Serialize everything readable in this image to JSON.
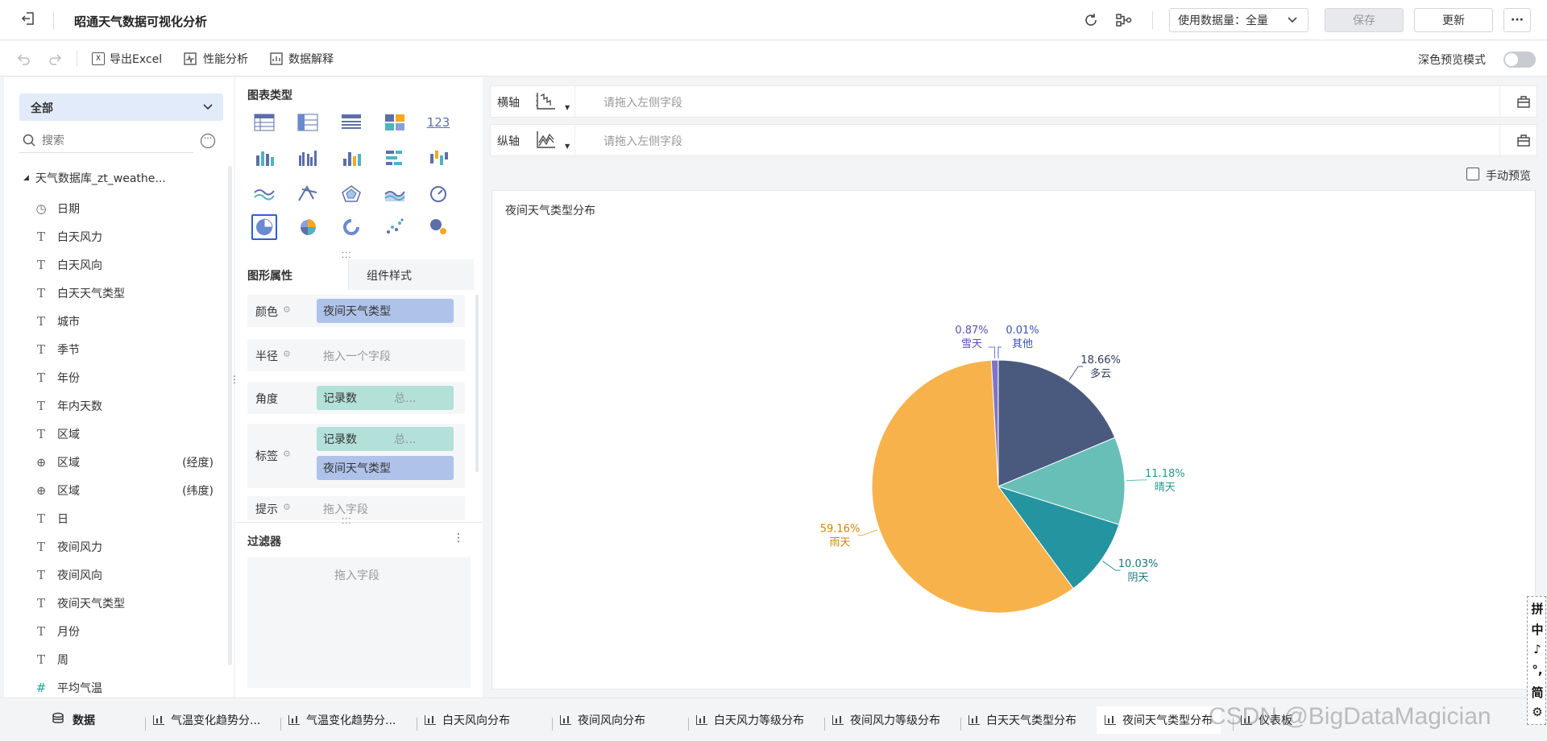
{
  "topbar": {
    "title": "昭通天气数据可视化分析",
    "data_amount_label": "使用数据量：全量",
    "save_label": "保存",
    "update_label": "更新",
    "more_label": "···"
  },
  "toolbar": {
    "export_label": "导出Excel",
    "perf_label": "性能分析",
    "explain_label": "数据解释",
    "dark_preview_label": "深色预览模式"
  },
  "left": {
    "dropdown_value": "全部",
    "search_placeholder": "搜索",
    "dataset_name": "天气数据库_zt_weathe...",
    "fields": [
      {
        "icon": "clock-icon",
        "glyph": "◷",
        "label": "日期",
        "extra": ""
      },
      {
        "icon": "text-field-icon",
        "glyph": "T",
        "label": "白天风力",
        "extra": ""
      },
      {
        "icon": "text-field-icon",
        "glyph": "T",
        "label": "白天风向",
        "extra": ""
      },
      {
        "icon": "text-field-icon",
        "glyph": "T",
        "label": "白天天气类型",
        "extra": ""
      },
      {
        "icon": "text-field-icon",
        "glyph": "T",
        "label": "城市",
        "extra": ""
      },
      {
        "icon": "text-field-icon",
        "glyph": "T",
        "label": "季节",
        "extra": ""
      },
      {
        "icon": "text-field-icon",
        "glyph": "T",
        "label": "年份",
        "extra": ""
      },
      {
        "icon": "text-field-icon",
        "glyph": "T",
        "label": "年内天数",
        "extra": ""
      },
      {
        "icon": "text-field-icon",
        "glyph": "T",
        "label": "区域",
        "extra": ""
      },
      {
        "icon": "globe-icon",
        "glyph": "⊕",
        "label": "区域",
        "extra": "(经度)"
      },
      {
        "icon": "globe-icon",
        "glyph": "⊕",
        "label": "区域",
        "extra": "(纬度)"
      },
      {
        "icon": "text-field-icon",
        "glyph": "T",
        "label": "日",
        "extra": ""
      },
      {
        "icon": "text-field-icon",
        "glyph": "T",
        "label": "夜间风力",
        "extra": ""
      },
      {
        "icon": "text-field-icon",
        "glyph": "T",
        "label": "夜间风向",
        "extra": ""
      },
      {
        "icon": "text-field-icon",
        "glyph": "T",
        "label": "夜间天气类型",
        "extra": ""
      },
      {
        "icon": "text-field-icon",
        "glyph": "T",
        "label": "月份",
        "extra": ""
      },
      {
        "icon": "text-field-icon",
        "glyph": "T",
        "label": "周",
        "extra": ""
      },
      {
        "icon": "number-field-icon",
        "glyph": "#",
        "label": "平均气温",
        "extra": ""
      }
    ]
  },
  "middle": {
    "chart_types_title": "图表类型",
    "num_chart_label": "123",
    "tab_properties": "图形属性",
    "tab_style": "组件样式",
    "color_label": "颜色",
    "color_chip": "夜间天气类型",
    "radius_label": "半径",
    "radius_placeholder": "拖入一个字段",
    "angle_label": "角度",
    "angle_chip": "记录数",
    "angle_chip_sub": "总...",
    "label_label": "标签",
    "label_chip1": "记录数",
    "label_chip1_sub": "总...",
    "label_chip2": "夜间天气类型",
    "tooltip_label": "提示",
    "tooltip_placeholder": "拖入字段",
    "filter_title": "过滤器",
    "filter_placeholder": "拖入字段"
  },
  "right": {
    "x_axis_label": "横轴",
    "y_axis_label": "纵轴",
    "axis_placeholder": "请拖入左侧字段",
    "manual_preview_label": "手动预览",
    "chart_title": "夜间天气类型分布"
  },
  "chart_data": {
    "type": "pie",
    "title": "夜间天气类型分布",
    "slices": [
      {
        "name": "多云",
        "value": 18.66,
        "pct": "18.66%",
        "color": "#4a5a7e"
      },
      {
        "name": "晴天",
        "value": 11.18,
        "pct": "11.18%",
        "color": "#68bfb7"
      },
      {
        "name": "阴天",
        "value": 10.03,
        "pct": "10.03%",
        "color": "#2494a0"
      },
      {
        "name": "雨天",
        "value": 59.16,
        "pct": "59.16%",
        "color": "#f8b24b"
      },
      {
        "name": "雪天",
        "value": 0.87,
        "pct": "0.87%",
        "color": "#7e75c8"
      },
      {
        "name": "其他",
        "value": 0.01,
        "pct": "0.01%",
        "color": "#4c6cc8"
      }
    ]
  },
  "bottom": {
    "data_tab": "数据",
    "tabs": [
      "气温变化趋势分...",
      "气温变化趋势分...",
      "白天风向分布",
      "夜间风向分布",
      "白天风力等级分布",
      "夜间风力等级分布",
      "白天天气类型分布",
      "夜间天气类型分布",
      "仪表板"
    ],
    "watermark": "CSDN @BigDataMagician"
  },
  "ime": [
    "拼",
    "中",
    "♪",
    "°,",
    "简",
    "⚙"
  ]
}
